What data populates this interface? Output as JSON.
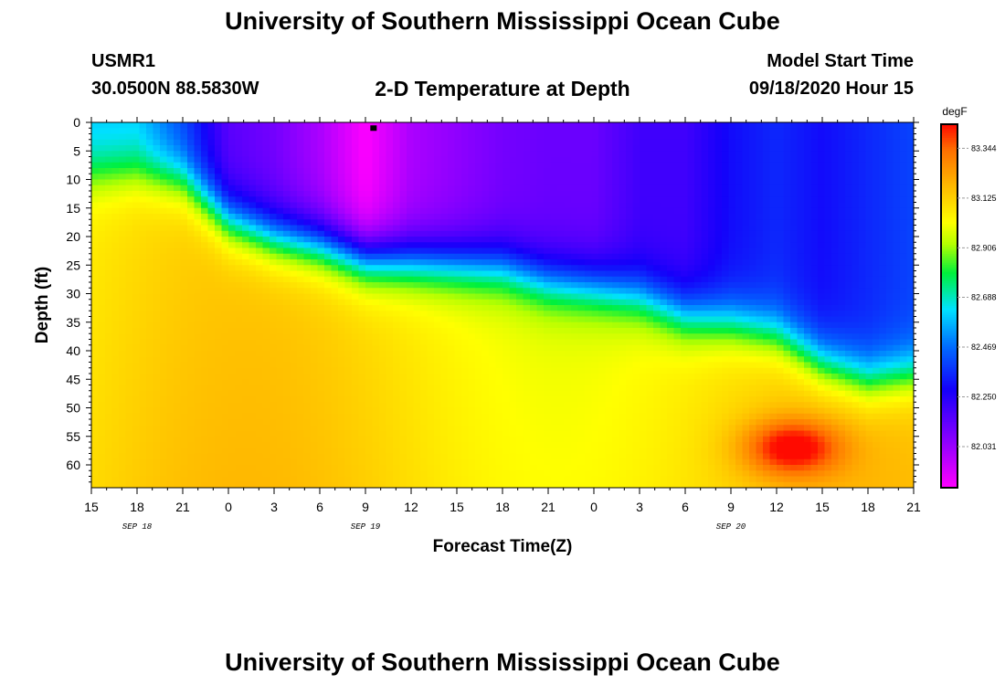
{
  "header": {
    "title": "University of Southern Mississippi Ocean Cube",
    "station_id": "USMR1",
    "coords": "30.0500N 88.5830W",
    "plot_title": "2-D Temperature at Depth",
    "model_label": "Model Start Time",
    "model_time": "09/18/2020 Hour 15"
  },
  "footer": {
    "title": "University of Southern Mississippi Ocean Cube"
  },
  "chart_data": {
    "type": "heatmap",
    "title": "2-D Temperature at Depth",
    "xlabel": "Forecast Time(Z)",
    "ylabel": "Depth (ft)",
    "x_ticks": [
      "15",
      "18",
      "21",
      "0",
      "3",
      "6",
      "9",
      "12",
      "15",
      "18",
      "21",
      "0",
      "3",
      "6",
      "9",
      "12",
      "15",
      "18",
      "21"
    ],
    "date_labels": [
      {
        "label": "SEP 18",
        "tick_index": 1
      },
      {
        "label": "SEP 19",
        "tick_index": 6
      },
      {
        "label": "SEP 20",
        "tick_index": 14
      }
    ],
    "x_range_hours": [
      0,
      54
    ],
    "y_ticks": [
      "0",
      "5",
      "10",
      "15",
      "20",
      "25",
      "30",
      "35",
      "40",
      "45",
      "50",
      "55",
      "60"
    ],
    "y_range_ft": [
      0,
      64
    ],
    "colorbar": {
      "unit": "degF",
      "range": [
        81.85,
        83.45
      ],
      "tick_labels": [
        "83.344",
        "83.125",
        "82.906",
        "82.688",
        "82.469",
        "82.250",
        "82.031"
      ],
      "tick_values": [
        83.344,
        83.125,
        82.906,
        82.688,
        82.469,
        82.25,
        82.031
      ]
    },
    "marker": {
      "label": "station marker",
      "x_hours": 18.5,
      "depth_ft": 1
    },
    "thermocline_depth_ft": {
      "hours": [
        0,
        3,
        6,
        9,
        12,
        15,
        18,
        21,
        24,
        27,
        30,
        33,
        36,
        39,
        42,
        45,
        48,
        51,
        54
      ],
      "depth": [
        9,
        8.5,
        10,
        17,
        20,
        21.5,
        24,
        24.5,
        25,
        25.5,
        28,
        29,
        30.5,
        34,
        35,
        37,
        42,
        45,
        44
      ]
    },
    "surface_temperature_degF": {
      "hours": [
        0,
        3,
        6,
        9,
        12,
        15,
        18,
        21,
        24,
        27,
        30,
        33,
        36,
        39,
        42,
        45,
        48,
        51,
        54
      ],
      "values": [
        82.6,
        82.6,
        82.4,
        82.15,
        82.1,
        82.0,
        81.85,
        82.0,
        82.05,
        82.1,
        82.12,
        82.12,
        82.2,
        82.2,
        82.3,
        82.35,
        82.3,
        82.35,
        82.4
      ]
    },
    "warm_core": {
      "x_hours": 46,
      "depth_ft": 57,
      "max_degF": 83.4
    }
  }
}
